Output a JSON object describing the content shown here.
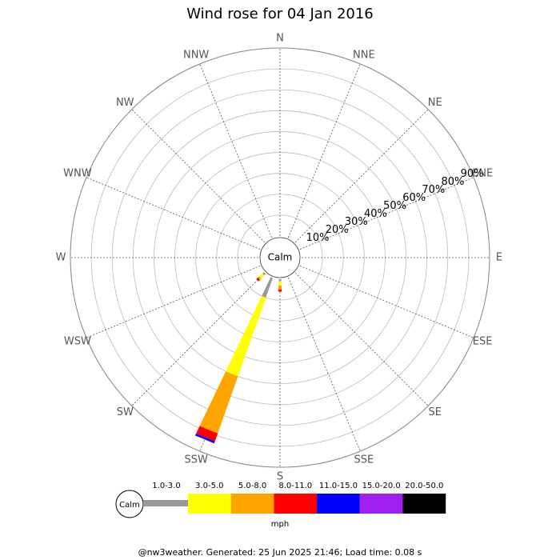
{
  "chart_data": {
    "type": "windrose",
    "title": "Wind rose for 04 Jan 2016",
    "directions": [
      "N",
      "NNE",
      "NE",
      "ENE",
      "E",
      "ESE",
      "SE",
      "SSE",
      "S",
      "SSW",
      "SW",
      "WSW",
      "W",
      "WNW",
      "NW",
      "NNW"
    ],
    "rlim": [
      0,
      90
    ],
    "rticks": [
      {
        "value": 10,
        "label": "10%"
      },
      {
        "value": 20,
        "label": "20%"
      },
      {
        "value": 30,
        "label": "30%"
      },
      {
        "value": 40,
        "label": "40%"
      },
      {
        "value": 50,
        "label": "50%"
      },
      {
        "value": 60,
        "label": "60%"
      },
      {
        "value": 70,
        "label": "70%"
      },
      {
        "value": 80,
        "label": "80%"
      },
      {
        "value": 90,
        "label": "90%"
      }
    ],
    "calm_label": "Calm",
    "unit": "mph",
    "series": [
      {
        "name": "1.0-3.0",
        "color": "#999999",
        "values": [
          0,
          0,
          0,
          0,
          0,
          0,
          0,
          0,
          1,
          10,
          1,
          0,
          0,
          0,
          0,
          0
        ]
      },
      {
        "name": "3.0-5.0",
        "color": "#ffff00",
        "values": [
          0,
          0,
          0,
          0,
          0,
          0,
          0,
          0,
          2,
          40,
          2,
          0,
          0,
          0,
          0,
          0
        ]
      },
      {
        "name": "5.0-8.0",
        "color": "#ffa500",
        "values": [
          0,
          0,
          0,
          0,
          0,
          0,
          0,
          0,
          2,
          29,
          1,
          0,
          0,
          0,
          0,
          0
        ]
      },
      {
        "name": "8.0-11.0",
        "color": "#ff0000",
        "values": [
          0,
          0,
          0,
          0,
          0,
          0,
          0,
          0,
          1,
          4,
          1,
          0,
          0,
          0,
          0,
          0
        ]
      },
      {
        "name": "11.0-15.0",
        "color": "#0000ff",
        "values": [
          0,
          0,
          0,
          0,
          0,
          0,
          0,
          0,
          0,
          1,
          0,
          0,
          0,
          0,
          0,
          0
        ]
      },
      {
        "name": "15.0-20.0",
        "color": "#a020f0",
        "values": [
          0,
          0,
          0,
          0,
          0,
          0,
          0,
          0,
          0,
          0,
          0,
          0,
          0,
          0,
          0,
          0
        ]
      },
      {
        "name": "20.0-50.0",
        "color": "#000000",
        "values": [
          0,
          0,
          0,
          0,
          0,
          0,
          0,
          0,
          0,
          0,
          0,
          0,
          0,
          0,
          0,
          0
        ]
      }
    ],
    "footer": "@nw3weather. Generated: 25 Jun 2025 21:46; Load time: 0.08 s"
  }
}
